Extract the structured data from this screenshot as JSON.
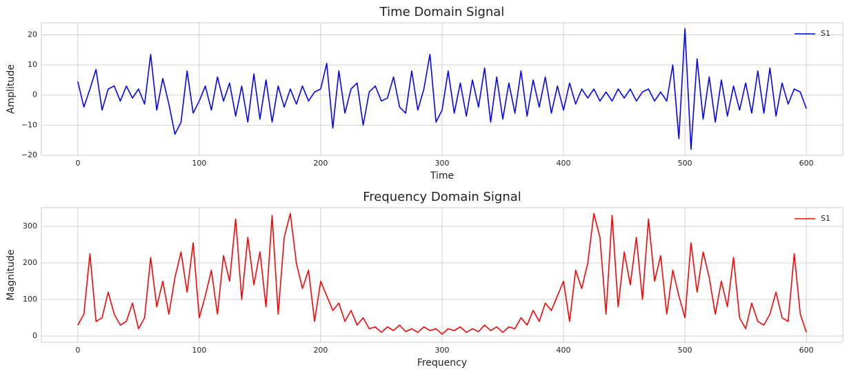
{
  "chart_data": [
    {
      "type": "line",
      "title": "Time Domain Signal",
      "xlabel": "Time",
      "ylabel": "Amplitude",
      "x": [
        0,
        5,
        10,
        15,
        20,
        25,
        30,
        35,
        40,
        45,
        50,
        55,
        60,
        65,
        70,
        75,
        80,
        85,
        90,
        95,
        100,
        105,
        110,
        115,
        120,
        125,
        130,
        135,
        140,
        145,
        150,
        155,
        160,
        165,
        170,
        175,
        180,
        185,
        190,
        195,
        200,
        205,
        210,
        215,
        220,
        225,
        230,
        235,
        240,
        245,
        250,
        255,
        260,
        265,
        270,
        275,
        280,
        285,
        290,
        295,
        300,
        305,
        310,
        315,
        320,
        325,
        330,
        335,
        340,
        345,
        350,
        355,
        360,
        365,
        370,
        375,
        380,
        385,
        390,
        395,
        400,
        405,
        410,
        415,
        420,
        425,
        430,
        435,
        440,
        445,
        450,
        455,
        460,
        465,
        470,
        475,
        480,
        485,
        490,
        495,
        500,
        505,
        510,
        515,
        520,
        525,
        530,
        535,
        540,
        545,
        550,
        555,
        560,
        565,
        570,
        575,
        580,
        585,
        590,
        595,
        600
      ],
      "series": [
        {
          "name": "S1",
          "color": "#0000ff",
          "values": [
            4.5,
            -4,
            2,
            8.5,
            -5,
            2,
            3,
            -2,
            3,
            -1,
            2,
            -3,
            13.5,
            -5,
            5.5,
            -3,
            -13,
            -9,
            8,
            -6,
            -2,
            3,
            -5,
            6,
            -2,
            4,
            -7,
            3,
            -9,
            7,
            -8,
            5,
            -9,
            3,
            -4,
            2,
            -3,
            3,
            -2,
            1,
            2,
            10.5,
            -11,
            8,
            -6,
            2,
            4,
            -10,
            1,
            3,
            -2,
            -1,
            6,
            -4,
            -6,
            8,
            -5,
            2,
            13.5,
            -9,
            -5,
            8,
            -6,
            4,
            -7,
            5,
            -4,
            9,
            -9,
            6,
            -8,
            4,
            -6,
            8,
            -7,
            5,
            -4,
            6,
            -6,
            3,
            -5,
            4,
            -3,
            2,
            -1,
            2,
            -2,
            1,
            -2,
            2,
            -1,
            2,
            -2,
            1,
            2,
            -2,
            1,
            -2,
            10,
            -14.5,
            22,
            -18,
            12,
            -8,
            6,
            -9,
            5,
            -7,
            3,
            -5,
            4,
            -6,
            8,
            -6,
            9,
            -7,
            4,
            -3,
            2,
            1,
            -4.5
          ]
        }
      ],
      "xlim": [
        -30,
        630
      ],
      "ylim": [
        -20,
        24
      ],
      "xticks": [
        0,
        100,
        200,
        300,
        400,
        500,
        600
      ],
      "yticks": [
        {
          "value": -20,
          "label": "−20"
        },
        {
          "value": -10,
          "label": "−10"
        },
        0,
        10,
        20
      ],
      "grid": true,
      "legend": "upper right"
    },
    {
      "type": "line",
      "title": "Frequency Domain Signal",
      "xlabel": "Frequency",
      "ylabel": "Magnitude",
      "x": [
        0,
        5,
        10,
        15,
        20,
        25,
        30,
        35,
        40,
        45,
        50,
        55,
        60,
        65,
        70,
        75,
        80,
        85,
        90,
        95,
        100,
        105,
        110,
        115,
        120,
        125,
        130,
        135,
        140,
        145,
        150,
        155,
        160,
        165,
        170,
        175,
        180,
        185,
        190,
        195,
        200,
        205,
        210,
        215,
        220,
        225,
        230,
        235,
        240,
        245,
        250,
        255,
        260,
        265,
        270,
        275,
        280,
        285,
        290,
        295,
        300,
        305,
        310,
        315,
        320,
        325,
        330,
        335,
        340,
        345,
        350,
        355,
        360,
        365,
        370,
        375,
        380,
        385,
        390,
        395,
        400,
        405,
        410,
        415,
        420,
        425,
        430,
        435,
        440,
        445,
        450,
        455,
        460,
        465,
        470,
        475,
        480,
        485,
        490,
        495,
        500,
        505,
        510,
        515,
        520,
        525,
        530,
        535,
        540,
        545,
        550,
        555,
        560,
        565,
        570,
        575,
        580,
        585,
        590,
        595,
        600
      ],
      "series": [
        {
          "name": "S1",
          "color": "#ff0000",
          "values": [
            30,
            60,
            225,
            40,
            50,
            120,
            60,
            30,
            40,
            90,
            20,
            50,
            215,
            80,
            150,
            60,
            160,
            230,
            120,
            255,
            50,
            110,
            180,
            60,
            220,
            150,
            320,
            100,
            270,
            140,
            230,
            80,
            330,
            60,
            270,
            335,
            200,
            130,
            180,
            40,
            150,
            110,
            70,
            90,
            40,
            70,
            30,
            50,
            20,
            25,
            10,
            25,
            15,
            30,
            12,
            20,
            10,
            25,
            15,
            20,
            5,
            20,
            15,
            25,
            10,
            20,
            12,
            30,
            15,
            25,
            10,
            25,
            20,
            50,
            30,
            70,
            40,
            90,
            70,
            110,
            150,
            40,
            180,
            130,
            200,
            335,
            270,
            60,
            330,
            80,
            230,
            140,
            270,
            100,
            320,
            150,
            220,
            60,
            180,
            110,
            50,
            255,
            120,
            230,
            160,
            60,
            150,
            80,
            215,
            50,
            20,
            90,
            40,
            30,
            60,
            120,
            50,
            40,
            225,
            60,
            10
          ]
        }
      ],
      "xlim": [
        -30,
        630
      ],
      "ylim": [
        -17,
        351
      ],
      "xticks": [
        0,
        100,
        200,
        300,
        400,
        500,
        600
      ],
      "yticks": [
        0,
        100,
        200,
        300
      ],
      "grid": true,
      "legend": "upper right"
    }
  ]
}
